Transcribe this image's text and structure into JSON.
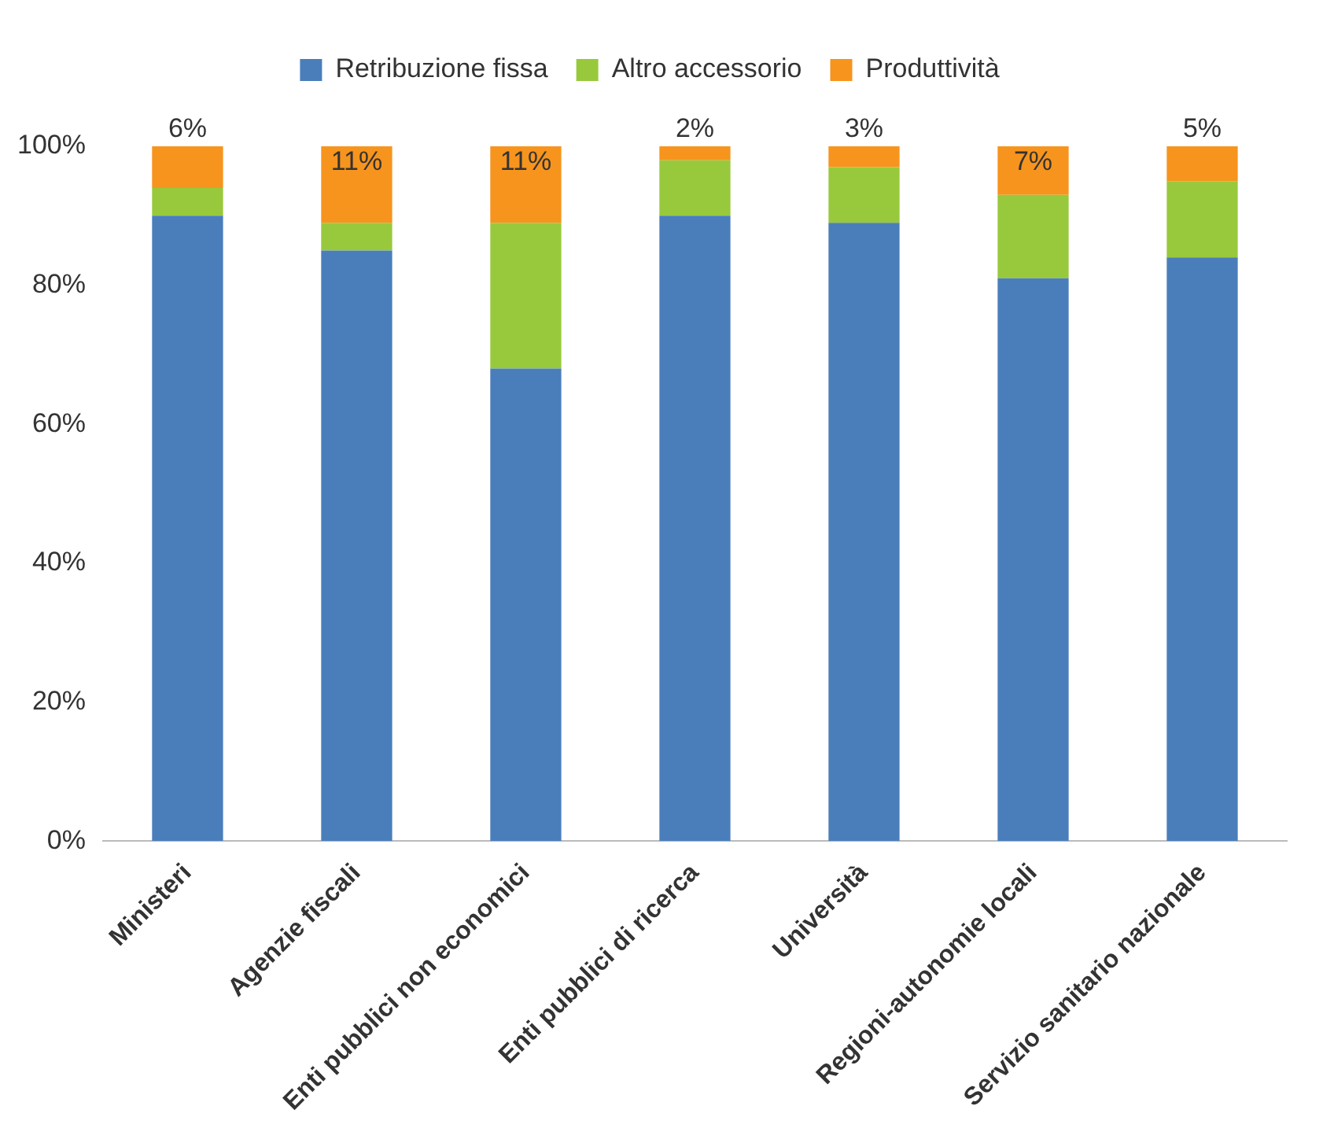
{
  "chart_data": {
    "type": "bar",
    "stacked": true,
    "categories": [
      "Ministeri",
      "Agenzie fiscali",
      "Enti pubblici non economici",
      "Enti pubblici di ricerca",
      "Università",
      "Regioni-autonomie locali",
      "Servizio sanitario nazionale"
    ],
    "series": [
      {
        "name": "Retribuzione fissa",
        "color": "#4a7ebb",
        "values": [
          90,
          85,
          68,
          90,
          89,
          81,
          84
        ]
      },
      {
        "name": "Altro accessorio",
        "color": "#98c93c",
        "values": [
          4,
          4,
          21,
          8,
          8,
          12,
          11
        ]
      },
      {
        "name": "Produttività",
        "color": "#f7941d",
        "values": [
          6,
          11,
          11,
          2,
          3,
          7,
          5
        ],
        "value_labels": [
          "6%",
          "11%",
          "11%",
          "2%",
          "3%",
          "7%",
          "5%"
        ]
      }
    ],
    "ylim": [
      0,
      100
    ],
    "yticks": [
      {
        "value": 0,
        "label": "0%"
      },
      {
        "value": 20,
        "label": "20%"
      },
      {
        "value": 40,
        "label": "40%"
      },
      {
        "value": 60,
        "label": "60%"
      },
      {
        "value": 80,
        "label": "80%"
      },
      {
        "value": 100,
        "label": "100%"
      }
    ],
    "grid": false,
    "legend": "top"
  }
}
